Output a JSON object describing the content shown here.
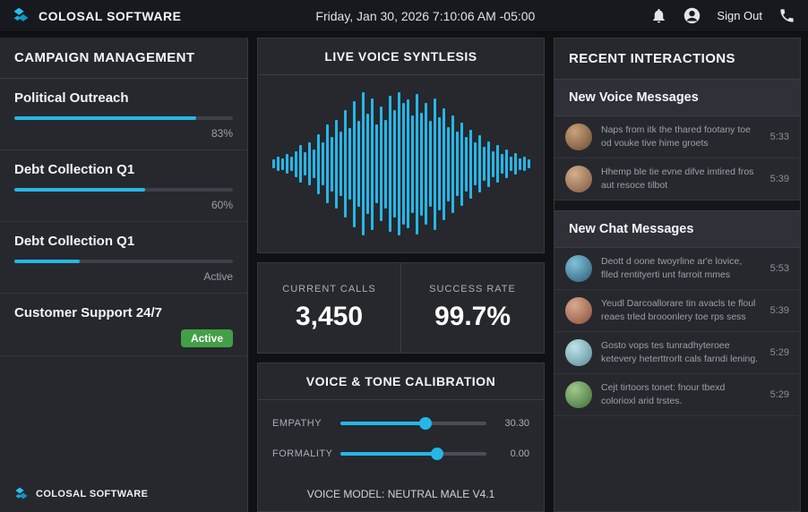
{
  "colors": {
    "accent": "#25b7e8",
    "badge_green": "#43a047",
    "panel": "#26282d",
    "background": "#0f1114"
  },
  "topbar": {
    "brand": "COLOSAL SOFTWARE",
    "datetime": "Friday, Jan 30, 2026 7:10:06 AM -05:00",
    "sign_out": "Sign Out"
  },
  "campaigns": {
    "title": "CAMPAIGN MANAGEMENT",
    "items": [
      {
        "name": "Political Outreach",
        "progress": 83,
        "status": "83%"
      },
      {
        "name": "Debt Collection Q1",
        "progress": 60,
        "status": "60%"
      },
      {
        "name": "Debt Collection Q1",
        "progress": 30,
        "status": "Active"
      },
      {
        "name": "Customer Support 24/7",
        "status": "Active"
      }
    ],
    "footer_brand": "COLOSAL SOFTWARE"
  },
  "voice_panel": {
    "title": "LIVE VOICE SYNTLESIS",
    "waveform": [
      0.06,
      0.1,
      0.08,
      0.14,
      0.1,
      0.18,
      0.26,
      0.16,
      0.3,
      0.2,
      0.42,
      0.3,
      0.55,
      0.38,
      0.62,
      0.45,
      0.75,
      0.5,
      0.88,
      0.6,
      1.0,
      0.7,
      0.92,
      0.55,
      0.8,
      0.62,
      0.95,
      0.75,
      1.0,
      0.85,
      0.9,
      0.68,
      0.98,
      0.72,
      0.85,
      0.6,
      0.92,
      0.65,
      0.78,
      0.52,
      0.68,
      0.45,
      0.58,
      0.38,
      0.48,
      0.3,
      0.4,
      0.24,
      0.32,
      0.18,
      0.26,
      0.14,
      0.2,
      0.1,
      0.15,
      0.08,
      0.1,
      0.06
    ]
  },
  "stats": {
    "current_calls_label": "CURRENT CALLS",
    "current_calls_value": "3,450",
    "success_rate_label": "SUCCESS RATE",
    "success_rate_value": "99.7%"
  },
  "calibration": {
    "title": "VOICE & TONE CALIBRATION",
    "sliders": [
      {
        "label": "EMPATHY",
        "value": "30.30",
        "percent": 58
      },
      {
        "label": "FORMALITY",
        "value": "0.00",
        "percent": 66
      }
    ],
    "model": "VOICE MODEL: NEUTRAL MALE V4.1"
  },
  "interactions": {
    "title": "RECENT INTERACTIONS",
    "sections": [
      {
        "title": "New Voice Messages",
        "items": [
          {
            "text": "Naps from itk the thared footany toe od vouke tive hime groets",
            "time": "5:33"
          },
          {
            "text": "Hhemp ble tie evne difve imtired fros aut resoce tilbot",
            "time": "5:39"
          }
        ]
      },
      {
        "title": "New Chat Messages",
        "items": [
          {
            "text": "Deott d oone twoyrline ar'e lovice, flled rentityerti unt farroit mmes",
            "time": "5:53"
          },
          {
            "text": "Yeudl Darcoallorare tin avacls te floul reaes trled brooonlery toe rps sess",
            "time": "5:39"
          },
          {
            "text": "Gosto vops tes tunradhyteroee ketevery heterttrorlt cals farndi lening.",
            "time": "5:29"
          },
          {
            "text": "Cejt tirtoors tonet: fnour tbexd colorioxl arid trstes.",
            "time": "5:29"
          }
        ]
      }
    ]
  }
}
